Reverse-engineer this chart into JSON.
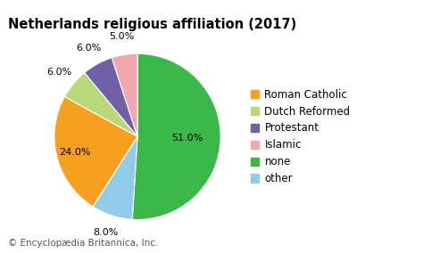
{
  "title": "Netherlands religious affiliation (2017)",
  "footnote": "© Encyclopædia Britannica, Inc.",
  "legend_labels": [
    "Roman Catholic",
    "Dutch Reformed",
    "Protestant",
    "Islamic",
    "none",
    "other"
  ],
  "legend_colors": [
    "#F5A020",
    "#B8D87A",
    "#7060A8",
    "#F0A8B0",
    "#3CB84A",
    "#90CCE8"
  ],
  "wedge_labels": [
    "none",
    "other",
    "Roman Catholic",
    "Dutch Reformed",
    "Protestant",
    "Islamic"
  ],
  "wedge_values": [
    51.0,
    8.0,
    24.0,
    6.0,
    6.0,
    5.0
  ],
  "wedge_colors": [
    "#3CB84A",
    "#90CCE8",
    "#F5A020",
    "#B8D87A",
    "#7060A8",
    "#F0A8B0"
  ],
  "startangle": 90,
  "background_color": "#ffffff",
  "title_fontsize": 10.5,
  "legend_fontsize": 8.5,
  "pct_fontsize": 8.0,
  "footnote_fontsize": 7.5
}
